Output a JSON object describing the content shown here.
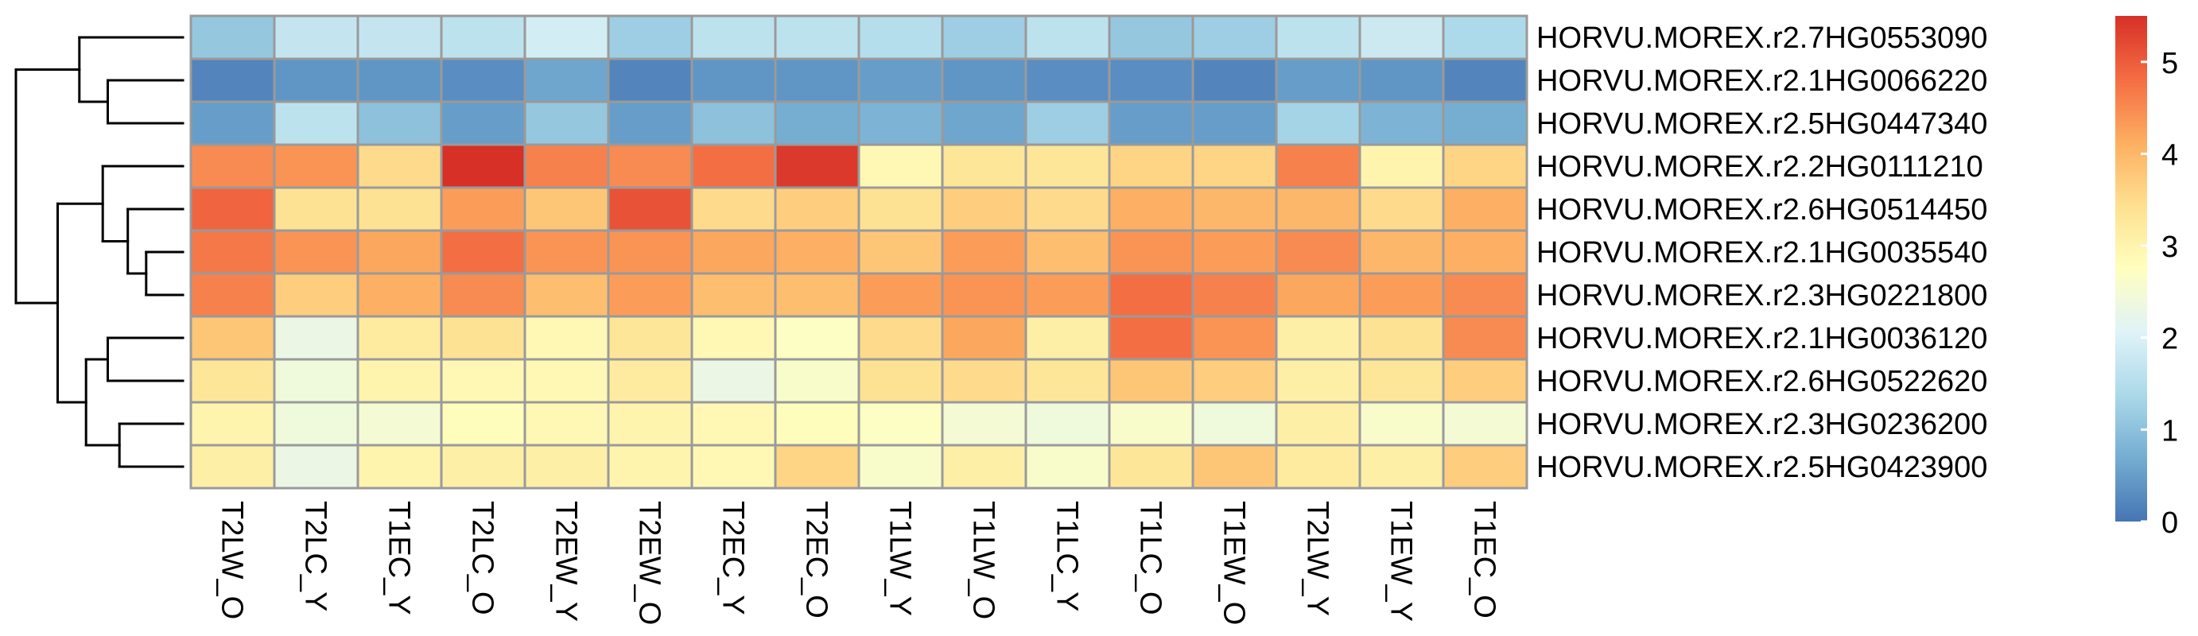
{
  "chart_data": {
    "type": "heatmap",
    "title": "",
    "xlabel": "",
    "ylabel": "",
    "columns": [
      "T2LW_O",
      "T2LC_Y",
      "T1EC_Y",
      "T2LC_O",
      "T2EW_Y",
      "T2EW_O",
      "T2EC_Y",
      "T2EC_O",
      "T1LW_Y",
      "T1LW_O",
      "T1LC_Y",
      "T1LC_O",
      "T1EW_O",
      "T2LW_Y",
      "T1EW_Y",
      "T1EC_O"
    ],
    "rows": [
      "HORVU.MOREX.r2.7HG0553090",
      "HORVU.MOREX.r2.1HG0066220",
      "HORVU.MOREX.r2.5HG0447340",
      "HORVU.MOREX.r2.2HG0111210",
      "HORVU.MOREX.r2.6HG0514450",
      "HORVU.MOREX.r2.1HG0035540",
      "HORVU.MOREX.r2.3HG0221800",
      "HORVU.MOREX.r2.1HG0036120",
      "HORVU.MOREX.r2.6HG0522620",
      "HORVU.MOREX.r2.3HG0236200",
      "HORVU.MOREX.r2.5HG0423900"
    ],
    "values": [
      [
        1.1,
        1.7,
        1.7,
        1.6,
        1.9,
        1.2,
        1.6,
        1.6,
        1.5,
        1.2,
        1.6,
        1.1,
        1.2,
        1.6,
        1.8,
        1.4
      ],
      [
        0.2,
        0.4,
        0.4,
        0.3,
        0.6,
        0.2,
        0.4,
        0.4,
        0.5,
        0.4,
        0.3,
        0.3,
        0.2,
        0.5,
        0.4,
        0.2
      ],
      [
        0.5,
        1.6,
        1.0,
        0.5,
        1.1,
        0.5,
        1.0,
        0.7,
        0.8,
        0.6,
        1.2,
        0.5,
        0.5,
        1.3,
        0.8,
        0.7
      ],
      [
        4.5,
        4.4,
        3.5,
        5.5,
        4.6,
        4.5,
        4.8,
        5.4,
        2.9,
        3.3,
        3.3,
        3.6,
        3.6,
        4.6,
        3.0,
        3.6
      ],
      [
        4.9,
        3.4,
        3.4,
        4.3,
        3.8,
        5.1,
        3.5,
        3.7,
        3.4,
        3.7,
        3.5,
        4.1,
        4.0,
        4.0,
        3.5,
        4.1
      ],
      [
        4.7,
        4.4,
        4.2,
        4.8,
        4.4,
        4.4,
        4.2,
        4.1,
        3.8,
        4.3,
        3.9,
        4.4,
        4.3,
        4.5,
        4.0,
        4.1
      ],
      [
        4.6,
        3.7,
        4.1,
        4.5,
        3.9,
        4.3,
        3.9,
        3.9,
        4.3,
        4.4,
        4.3,
        4.8,
        4.6,
        4.2,
        4.3,
        4.5
      ],
      [
        3.8,
        2.3,
        3.2,
        3.4,
        2.9,
        3.3,
        2.9,
        2.7,
        3.5,
        4.2,
        3.1,
        4.8,
        4.4,
        3.1,
        3.4,
        4.5
      ],
      [
        3.3,
        2.4,
        3.0,
        2.9,
        2.9,
        3.2,
        2.3,
        2.6,
        3.4,
        3.5,
        3.3,
        3.8,
        3.7,
        3.1,
        3.3,
        3.7
      ],
      [
        3.0,
        2.4,
        2.5,
        2.8,
        2.9,
        3.0,
        2.9,
        2.8,
        2.7,
        2.5,
        2.4,
        2.6,
        2.4,
        3.1,
        2.6,
        2.5
      ],
      [
        3.1,
        2.3,
        3.0,
        3.1,
        3.1,
        3.0,
        2.9,
        3.6,
        2.6,
        3.1,
        2.6,
        3.3,
        3.8,
        3.2,
        3.1,
        3.7
      ]
    ],
    "legend": {
      "min": 0,
      "max": 5.5,
      "ticks": [
        0,
        1,
        2,
        3,
        4,
        5
      ],
      "colors": [
        "#4575b4",
        "#74add1",
        "#abd9e9",
        "#e0f3f8",
        "#ffffbf",
        "#fee090",
        "#fdae61",
        "#f46d43",
        "#d73027"
      ]
    },
    "row_dendrogram": {
      "leaf_order": [
        0,
        1,
        2,
        3,
        4,
        5,
        6,
        7,
        8,
        9,
        10
      ],
      "merges": [
        [
          -2,
          -3,
          0.45
        ],
        [
          -1,
          1,
          0.62
        ],
        [
          -6,
          -7,
          0.22
        ],
        [
          -5,
          3,
          0.33
        ],
        [
          -4,
          4,
          0.48
        ],
        [
          -8,
          -9,
          0.45
        ],
        [
          -10,
          -11,
          0.38
        ],
        [
          6,
          7,
          0.58
        ],
        [
          5,
          8,
          0.75
        ],
        [
          2,
          9,
          1.0
        ]
      ]
    },
    "grid": true,
    "legend_position": "right"
  }
}
